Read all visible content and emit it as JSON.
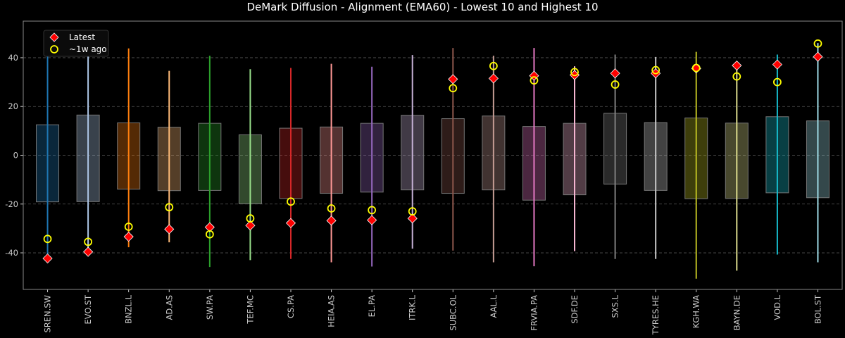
{
  "chart_data": {
    "type": "range-box",
    "title": "DeMark Diffusion - Alignment (EMA60) - Lowest 10 and Highest 10",
    "xlabel": "",
    "ylabel": "",
    "ylim": [
      -55,
      55
    ],
    "yticks": [
      -40,
      -20,
      0,
      20,
      40
    ],
    "grid": true,
    "legend_position": "top-left",
    "legend": [
      {
        "name": "Latest",
        "marker": "diamond",
        "color": "#ff0000"
      },
      {
        "name": "~1w ago",
        "marker": "circle",
        "color": "#ffff00"
      }
    ],
    "categories": [
      "SREN.SW",
      "EVO.ST",
      "BNZL.L",
      "AD.AS",
      "SW.PA",
      "TEF.MC",
      "CS.PA",
      "HEIA.AS",
      "EL.PA",
      "ITRK.L",
      "SUBC.OL",
      "AAL.L",
      "FRVIA.PA",
      "SDF.DE",
      "SXS.L",
      "TYRES.HE",
      "KGH.WA",
      "BAYN.DE",
      "VOD.L",
      "BOL.ST"
    ],
    "colors": [
      "#1f77b4",
      "#aec7e8",
      "#ff7f0e",
      "#ffbb78",
      "#2ca02c",
      "#98df8a",
      "#d62728",
      "#ff9896",
      "#9467bd",
      "#c5b0d5",
      "#8c564b",
      "#c49c94",
      "#e377c2",
      "#f7b6d2",
      "#7f7f7f",
      "#c7c7c7",
      "#bcbd22",
      "#dbdb8d",
      "#17becf",
      "#9edae5"
    ],
    "range_high": [
      44.7,
      49,
      43.8,
      34.6,
      40.8,
      35.3,
      35.8,
      37.5,
      36.3,
      41.1,
      44,
      40.8,
      44,
      36.5,
      41.3,
      40.3,
      42.4,
      37.5,
      41.3,
      46
    ],
    "range_low": [
      -41.4,
      -39,
      -37.7,
      -35.7,
      -45.8,
      -43,
      -42.5,
      -43.9,
      -45.6,
      -38.3,
      -39.1,
      -43.9,
      -45.5,
      -39.3,
      -42.5,
      -42.5,
      -50.6,
      -47.3,
      -40.7,
      -43.9
    ],
    "box_high": [
      12.5,
      16.5,
      13.3,
      11.5,
      13.1,
      8.4,
      11.1,
      11.6,
      13.1,
      16.4,
      15,
      16.1,
      11.8,
      13.1,
      17.2,
      13.4,
      15.3,
      13.2,
      15.8,
      14.1
    ],
    "box_low": [
      -19.1,
      -19,
      -13.9,
      -14.5,
      -14.4,
      -19.9,
      -17.7,
      -15.6,
      -15.1,
      -14.2,
      -15.6,
      -14.2,
      -18.4,
      -16.2,
      -11.8,
      -14.4,
      -17.8,
      -17.7,
      -15.4,
      -17.4
    ],
    "series": [
      {
        "name": "Latest",
        "values": [
          -42.3,
          -39.6,
          -33.4,
          -30.3,
          -29.5,
          -28.8,
          -27.8,
          -26.8,
          -26.6,
          -25.9,
          31.2,
          31.5,
          32.6,
          32.9,
          33.6,
          33.6,
          35.6,
          36.8,
          37.2,
          40.4
        ]
      },
      {
        "name": "~1w ago",
        "values": [
          -34.3,
          -35.5,
          -29.3,
          -21.3,
          -32.4,
          -25.9,
          -19,
          -21.8,
          -22.5,
          -23,
          27.5,
          36.6,
          30.7,
          34.1,
          29,
          34.9,
          35.8,
          32.3,
          30,
          45.8
        ]
      }
    ]
  }
}
